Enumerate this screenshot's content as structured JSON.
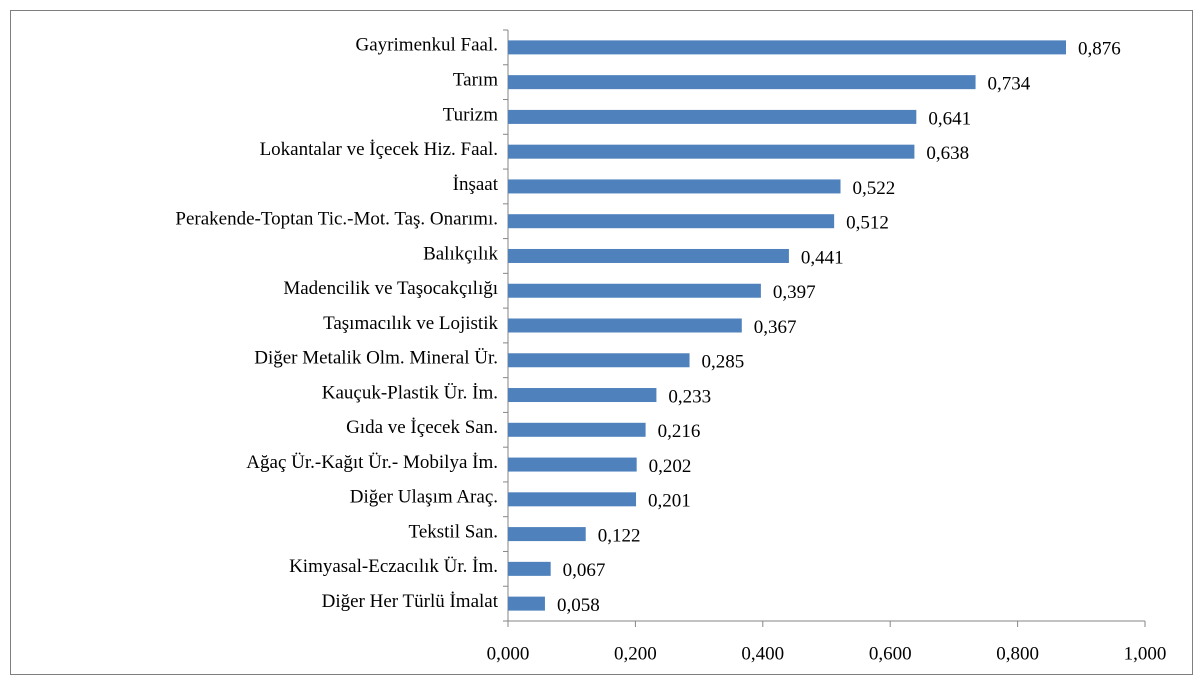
{
  "chart_data": {
    "type": "bar",
    "orientation": "horizontal",
    "categories": [
      "Gayrimenkul Faal.",
      "Tarım",
      "Turizm",
      "Lokantalar ve İçecek Hiz. Faal.",
      "İnşaat",
      "Perakende-Toptan Tic.-Mot. Taş. Onarımı.",
      "Balıkçılık",
      "Madencilik ve Taşocakçılığı",
      "Taşımacılık ve Lojistik",
      "Diğer Metalik Olm. Mineral Ür.",
      "Kauçuk-Plastik Ür. İm.",
      "Gıda ve İçecek San.",
      "Ağaç Ür.-Kağıt Ür.- Mobilya İm.",
      "Diğer Ulaşım Araç.",
      "Tekstil San.",
      "Kimyasal-Eczacılık Ür. İm.",
      "Diğer Her Türlü İmalat"
    ],
    "values": [
      0.876,
      0.734,
      0.641,
      0.638,
      0.522,
      0.512,
      0.441,
      0.397,
      0.367,
      0.285,
      0.233,
      0.216,
      0.202,
      0.201,
      0.122,
      0.067,
      0.058
    ],
    "value_labels": [
      "0,876",
      "0,734",
      "0,641",
      "0,638",
      "0,522",
      "0,512",
      "0,441",
      "0,397",
      "0,367",
      "0,285",
      "0,233",
      "0,216",
      "0,202",
      "0,201",
      "0,122",
      "0,067",
      "0,058"
    ],
    "color": "#4f81bd",
    "xlim": [
      0,
      1
    ],
    "xticks": [
      {
        "value": 0,
        "label": "0,000"
      },
      {
        "value": 0.2,
        "label": "0,200"
      },
      {
        "value": 0.4,
        "label": "0,400"
      },
      {
        "value": 0.6,
        "label": "0,600"
      },
      {
        "value": 0.8,
        "label": "0,800"
      },
      {
        "value": 1,
        "label": "1,000"
      }
    ],
    "grid": false
  }
}
